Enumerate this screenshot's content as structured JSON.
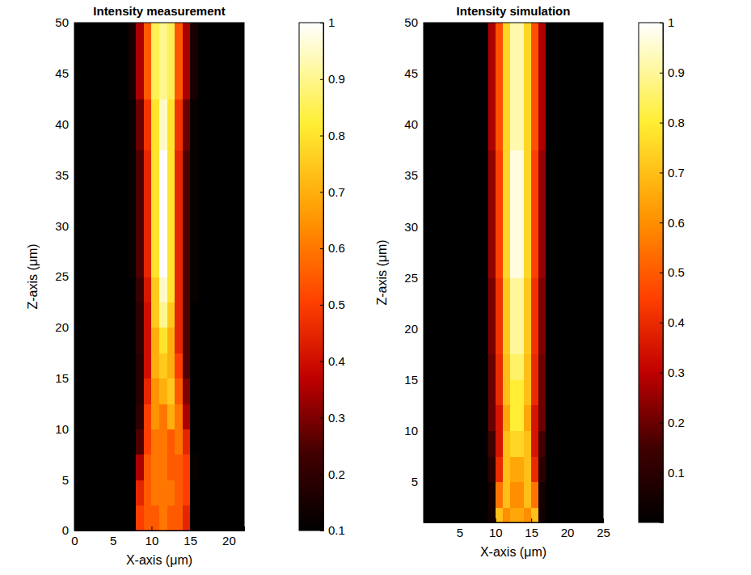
{
  "chart_data": [
    {
      "type": "heatmap",
      "title": "Intensity measurement",
      "x_label": "X-axis (μm)",
      "y_label": "Z-axis (μm)",
      "xlim": [
        0,
        22
      ],
      "ylim": [
        0,
        50
      ],
      "xticks": [
        0,
        5,
        10,
        15,
        20
      ],
      "yticks": [
        0,
        5,
        10,
        15,
        20,
        25,
        30,
        35,
        40,
        45,
        50
      ],
      "x": [
        0.5,
        1.5,
        2.5,
        3.5,
        4.5,
        5.5,
        6.5,
        7.5,
        8.5,
        9.5,
        10.5,
        11.5,
        12.5,
        13.5,
        14.5,
        15.5,
        16.5,
        17.5,
        18.5,
        19.5,
        20.5,
        21.5
      ],
      "y": [
        1.25,
        3.75,
        6.25,
        8.75,
        11.25,
        13.75,
        16.25,
        18.75,
        21.25,
        23.75,
        26.25,
        28.75,
        31.25,
        33.75,
        36.25,
        38.75,
        41.25,
        43.75,
        46.25,
        48.75
      ],
      "values": [
        [
          0.1,
          0.1,
          0.1,
          0.1,
          0.1,
          0.1,
          0.1,
          0.1,
          0.5,
          0.55,
          0.55,
          0.6,
          0.55,
          0.55,
          0.45,
          0.1,
          0.1,
          0.1,
          0.1,
          0.1,
          0.1,
          0.1
        ],
        [
          0.1,
          0.1,
          0.1,
          0.1,
          0.1,
          0.1,
          0.1,
          0.1,
          0.45,
          0.55,
          0.6,
          0.6,
          0.6,
          0.55,
          0.5,
          0.1,
          0.1,
          0.1,
          0.1,
          0.1,
          0.1,
          0.1
        ],
        [
          0.1,
          0.1,
          0.1,
          0.1,
          0.1,
          0.1,
          0.1,
          0.1,
          0.35,
          0.55,
          0.6,
          0.6,
          0.55,
          0.55,
          0.5,
          0.12,
          0.1,
          0.1,
          0.1,
          0.1,
          0.1,
          0.1
        ],
        [
          0.1,
          0.1,
          0.1,
          0.1,
          0.1,
          0.1,
          0.1,
          0.1,
          0.25,
          0.5,
          0.6,
          0.6,
          0.55,
          0.6,
          0.45,
          0.1,
          0.1,
          0.1,
          0.1,
          0.1,
          0.1,
          0.1
        ],
        [
          0.1,
          0.1,
          0.1,
          0.1,
          0.1,
          0.1,
          0.1,
          0.1,
          0.2,
          0.5,
          0.65,
          0.6,
          0.7,
          0.6,
          0.35,
          0.1,
          0.1,
          0.1,
          0.1,
          0.1,
          0.1,
          0.1
        ],
        [
          0.1,
          0.1,
          0.1,
          0.1,
          0.1,
          0.1,
          0.1,
          0.1,
          0.18,
          0.45,
          0.65,
          0.7,
          0.75,
          0.55,
          0.3,
          0.1,
          0.1,
          0.1,
          0.1,
          0.1,
          0.1,
          0.1
        ],
        [
          0.1,
          0.1,
          0.1,
          0.1,
          0.1,
          0.1,
          0.1,
          0.1,
          0.18,
          0.4,
          0.7,
          0.75,
          0.7,
          0.5,
          0.25,
          0.1,
          0.1,
          0.1,
          0.1,
          0.1,
          0.1,
          0.1
        ],
        [
          0.1,
          0.1,
          0.1,
          0.1,
          0.1,
          0.1,
          0.1,
          0.1,
          0.2,
          0.4,
          0.7,
          0.8,
          0.7,
          0.45,
          0.25,
          0.1,
          0.1,
          0.1,
          0.1,
          0.1,
          0.1,
          0.1
        ],
        [
          0.1,
          0.1,
          0.1,
          0.1,
          0.1,
          0.1,
          0.1,
          0.1,
          0.2,
          0.4,
          0.75,
          0.9,
          0.75,
          0.45,
          0.25,
          0.1,
          0.1,
          0.1,
          0.1,
          0.1,
          0.1,
          0.1
        ],
        [
          0.1,
          0.1,
          0.1,
          0.1,
          0.1,
          0.1,
          0.1,
          0.1,
          0.22,
          0.42,
          0.75,
          0.95,
          0.8,
          0.45,
          0.25,
          0.12,
          0.1,
          0.1,
          0.1,
          0.1,
          0.1,
          0.1
        ],
        [
          0.1,
          0.1,
          0.1,
          0.1,
          0.1,
          0.1,
          0.1,
          0.12,
          0.25,
          0.45,
          0.8,
          1,
          0.8,
          0.45,
          0.25,
          0.12,
          0.1,
          0.1,
          0.1,
          0.1,
          0.1,
          0.1
        ],
        [
          0.1,
          0.1,
          0.1,
          0.1,
          0.1,
          0.1,
          0.1,
          0.12,
          0.25,
          0.45,
          0.8,
          1,
          0.8,
          0.45,
          0.25,
          0.12,
          0.1,
          0.1,
          0.1,
          0.1,
          0.1,
          0.1
        ],
        [
          0.1,
          0.1,
          0.1,
          0.1,
          0.1,
          0.1,
          0.1,
          0.12,
          0.25,
          0.45,
          0.8,
          1,
          0.8,
          0.45,
          0.25,
          0.12,
          0.1,
          0.1,
          0.1,
          0.1,
          0.1,
          0.1
        ],
        [
          0.1,
          0.1,
          0.1,
          0.1,
          0.1,
          0.1,
          0.1,
          0.12,
          0.25,
          0.45,
          0.8,
          1,
          0.8,
          0.45,
          0.25,
          0.12,
          0.1,
          0.1,
          0.1,
          0.1,
          0.1,
          0.1
        ],
        [
          0.1,
          0.1,
          0.1,
          0.1,
          0.1,
          0.1,
          0.1,
          0.12,
          0.25,
          0.45,
          0.8,
          1,
          0.8,
          0.45,
          0.25,
          0.12,
          0.1,
          0.1,
          0.1,
          0.1,
          0.1,
          0.1
        ],
        [
          0.1,
          0.1,
          0.1,
          0.1,
          0.1,
          0.1,
          0.1,
          0.12,
          0.28,
          0.48,
          0.8,
          0.95,
          0.8,
          0.48,
          0.28,
          0.12,
          0.1,
          0.1,
          0.1,
          0.1,
          0.1,
          0.1
        ],
        [
          0.1,
          0.1,
          0.1,
          0.1,
          0.1,
          0.1,
          0.1,
          0.12,
          0.28,
          0.48,
          0.8,
          0.95,
          0.8,
          0.48,
          0.28,
          0.12,
          0.1,
          0.1,
          0.1,
          0.1,
          0.1,
          0.1
        ],
        [
          0.1,
          0.1,
          0.1,
          0.1,
          0.1,
          0.1,
          0.1,
          0.15,
          0.35,
          0.55,
          0.85,
          0.9,
          0.85,
          0.55,
          0.35,
          0.15,
          0.1,
          0.1,
          0.1,
          0.1,
          0.1,
          0.1
        ],
        [
          0.1,
          0.1,
          0.1,
          0.1,
          0.1,
          0.1,
          0.1,
          0.15,
          0.35,
          0.55,
          0.85,
          0.9,
          0.85,
          0.55,
          0.35,
          0.15,
          0.1,
          0.1,
          0.1,
          0.1,
          0.1,
          0.1
        ],
        [
          0.1,
          0.1,
          0.1,
          0.1,
          0.1,
          0.1,
          0.1,
          0.15,
          0.35,
          0.55,
          0.85,
          0.9,
          0.85,
          0.55,
          0.35,
          0.15,
          0.1,
          0.1,
          0.1,
          0.1,
          0.1,
          0.1
        ]
      ],
      "colorbar": {
        "range": [
          0.1,
          1
        ],
        "ticks": [
          0.1,
          0.2,
          0.3,
          0.4,
          0.5,
          0.6,
          0.7,
          0.8,
          0.9,
          1
        ]
      }
    },
    {
      "type": "heatmap",
      "title": "Intensity simulation",
      "x_label": "X-axis (μm)",
      "y_label": "Z-axis (μm)",
      "xlim": [
        0,
        25
      ],
      "ylim": [
        1,
        50
      ],
      "xticks": [
        5,
        10,
        15,
        20,
        25
      ],
      "yticks": [
        5,
        10,
        15,
        20,
        25,
        30,
        35,
        40,
        45,
        50
      ],
      "x": [
        0.5,
        1.5,
        2.5,
        3.5,
        4.5,
        5.5,
        6.5,
        7.5,
        8.5,
        9.5,
        10.5,
        11.5,
        12.5,
        13.5,
        14.5,
        15.5,
        16.5,
        17.5,
        18.5,
        19.5,
        20.5,
        21.5,
        22.5,
        23.5,
        24.5
      ],
      "y": [
        1.25,
        3.75,
        6.25,
        8.75,
        11.25,
        13.75,
        16.25,
        18.75,
        21.25,
        23.75,
        26.25,
        28.75,
        31.25,
        33.75,
        36.25,
        38.75,
        41.25,
        43.75,
        46.25,
        48.75
      ],
      "values": [
        [
          0,
          0,
          0,
          0,
          0,
          0,
          0,
          0,
          0,
          0.05,
          0.7,
          0.6,
          0.65,
          0.65,
          0.6,
          0.7,
          0.05,
          0,
          0,
          0,
          0,
          0,
          0,
          0,
          0
        ],
        [
          0,
          0,
          0,
          0,
          0,
          0,
          0,
          0,
          0,
          0.05,
          0.55,
          0.7,
          0.6,
          0.6,
          0.7,
          0.55,
          0.05,
          0,
          0,
          0,
          0,
          0,
          0,
          0,
          0
        ],
        [
          0,
          0,
          0,
          0,
          0,
          0,
          0,
          0,
          0,
          0.1,
          0.4,
          0.7,
          0.65,
          0.65,
          0.7,
          0.4,
          0.1,
          0,
          0,
          0,
          0,
          0,
          0,
          0,
          0
        ],
        [
          0,
          0,
          0,
          0,
          0,
          0,
          0,
          0,
          0,
          0.15,
          0.35,
          0.7,
          0.75,
          0.75,
          0.7,
          0.35,
          0.15,
          0,
          0,
          0,
          0,
          0,
          0,
          0,
          0
        ],
        [
          0,
          0,
          0,
          0,
          0,
          0,
          0,
          0,
          0,
          0.2,
          0.35,
          0.65,
          0.8,
          0.8,
          0.65,
          0.35,
          0.2,
          0,
          0,
          0,
          0,
          0,
          0,
          0,
          0
        ],
        [
          0,
          0,
          0,
          0,
          0,
          0,
          0,
          0,
          0,
          0.2,
          0.4,
          0.7,
          0.8,
          0.8,
          0.7,
          0.4,
          0.2,
          0,
          0,
          0,
          0,
          0,
          0,
          0,
          0
        ],
        [
          0,
          0,
          0,
          0,
          0,
          0,
          0,
          0,
          0,
          0.2,
          0.4,
          0.7,
          0.85,
          0.85,
          0.7,
          0.4,
          0.2,
          0,
          0,
          0,
          0,
          0,
          0,
          0,
          0
        ],
        [
          0,
          0,
          0,
          0,
          0,
          0,
          0,
          0,
          0,
          0.22,
          0.42,
          0.72,
          0.9,
          0.9,
          0.72,
          0.42,
          0.22,
          0,
          0,
          0,
          0,
          0,
          0,
          0,
          0
        ],
        [
          0,
          0,
          0,
          0,
          0,
          0,
          0,
          0,
          0,
          0.22,
          0.42,
          0.72,
          0.9,
          0.9,
          0.72,
          0.42,
          0.22,
          0,
          0,
          0,
          0,
          0,
          0,
          0,
          0
        ],
        [
          0,
          0,
          0,
          0,
          0,
          0,
          0,
          0,
          0,
          0.22,
          0.42,
          0.72,
          0.9,
          0.9,
          0.72,
          0.42,
          0.22,
          0,
          0,
          0,
          0,
          0,
          0,
          0,
          0
        ],
        [
          0,
          0,
          0,
          0,
          0,
          0,
          0,
          0,
          0,
          0.25,
          0.45,
          0.75,
          0.97,
          0.97,
          0.75,
          0.45,
          0.25,
          0,
          0,
          0,
          0,
          0,
          0,
          0,
          0
        ],
        [
          0,
          0,
          0,
          0,
          0,
          0,
          0,
          0,
          0,
          0.25,
          0.45,
          0.75,
          0.97,
          0.97,
          0.75,
          0.45,
          0.25,
          0,
          0,
          0,
          0,
          0,
          0,
          0,
          0
        ],
        [
          0,
          0,
          0,
          0,
          0,
          0,
          0,
          0,
          0,
          0.25,
          0.45,
          0.75,
          0.97,
          0.97,
          0.75,
          0.45,
          0.25,
          0,
          0,
          0,
          0,
          0,
          0,
          0,
          0
        ],
        [
          0,
          0,
          0,
          0,
          0,
          0,
          0,
          0,
          0,
          0.25,
          0.45,
          0.75,
          0.97,
          0.97,
          0.75,
          0.45,
          0.25,
          0,
          0,
          0,
          0,
          0,
          0,
          0,
          0
        ],
        [
          0,
          0,
          0,
          0,
          0,
          0,
          0,
          0,
          0,
          0.25,
          0.45,
          0.75,
          0.97,
          0.97,
          0.75,
          0.45,
          0.25,
          0,
          0,
          0,
          0,
          0,
          0,
          0,
          0
        ],
        [
          0,
          0,
          0,
          0,
          0,
          0,
          0,
          0,
          0,
          0.28,
          0.48,
          0.75,
          0.92,
          0.92,
          0.75,
          0.48,
          0.28,
          0,
          0,
          0,
          0,
          0,
          0,
          0,
          0
        ],
        [
          0,
          0,
          0,
          0,
          0,
          0,
          0,
          0,
          0,
          0.28,
          0.48,
          0.75,
          0.92,
          0.92,
          0.75,
          0.48,
          0.28,
          0,
          0,
          0,
          0,
          0,
          0,
          0,
          0
        ],
        [
          0,
          0,
          0,
          0,
          0,
          0,
          0,
          0,
          0,
          0.28,
          0.48,
          0.75,
          0.92,
          0.92,
          0.75,
          0.48,
          0.28,
          0,
          0,
          0,
          0,
          0,
          0,
          0,
          0
        ],
        [
          0,
          0,
          0,
          0,
          0,
          0,
          0,
          0,
          0,
          0.28,
          0.48,
          0.75,
          0.92,
          0.92,
          0.75,
          0.48,
          0.28,
          0,
          0,
          0,
          0,
          0,
          0,
          0,
          0
        ],
        [
          0,
          0,
          0,
          0,
          0,
          0,
          0,
          0,
          0,
          0.28,
          0.48,
          0.75,
          0.92,
          0.92,
          0.75,
          0.48,
          0.28,
          0,
          0,
          0,
          0,
          0,
          0,
          0,
          0
        ]
      ],
      "colorbar": {
        "range": [
          0,
          1
        ],
        "ticks": [
          0.1,
          0.2,
          0.3,
          0.4,
          0.5,
          0.6,
          0.7,
          0.8,
          0.9,
          1
        ]
      }
    }
  ]
}
